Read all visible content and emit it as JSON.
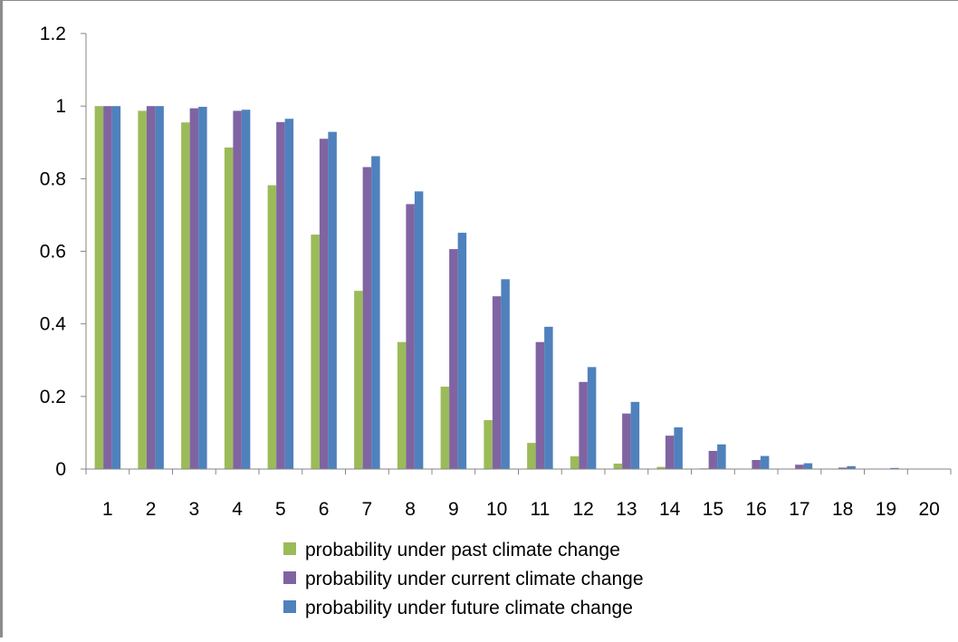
{
  "chart_data": {
    "type": "bar",
    "categories": [
      "1",
      "2",
      "3",
      "4",
      "5",
      "6",
      "7",
      "8",
      "9",
      "10",
      "11",
      "12",
      "13",
      "14",
      "15",
      "16",
      "17",
      "18",
      "19",
      "20"
    ],
    "series": [
      {
        "name": "probability under past climate change",
        "color": "#9bbb59",
        "values": [
          1.0,
          0.987,
          0.955,
          0.886,
          0.782,
          0.646,
          0.491,
          0.35,
          0.227,
          0.135,
          0.072,
          0.035,
          0.015,
          0.006,
          0.002,
          0.001,
          0.0,
          0.0,
          0.0,
          0.0
        ]
      },
      {
        "name": "probability under current climate change",
        "color": "#8064a2",
        "values": [
          1.0,
          1.0,
          0.994,
          0.987,
          0.956,
          0.91,
          0.832,
          0.73,
          0.606,
          0.476,
          0.35,
          0.24,
          0.153,
          0.092,
          0.05,
          0.025,
          0.012,
          0.004,
          0.001,
          0.0
        ]
      },
      {
        "name": "probability under future climate change",
        "color": "#4f81bd",
        "values": [
          1.0,
          1.0,
          0.998,
          0.99,
          0.965,
          0.929,
          0.862,
          0.765,
          0.651,
          0.523,
          0.392,
          0.281,
          0.185,
          0.115,
          0.068,
          0.036,
          0.016,
          0.008,
          0.003,
          0.0
        ]
      }
    ],
    "ylim": [
      0,
      1.2
    ],
    "yticks": [
      "0",
      "0.2",
      "0.4",
      "0.6",
      "0.8",
      "1",
      "1.2"
    ],
    "title": "",
    "xlabel": "",
    "ylabel": "",
    "grid": false,
    "legend_position": "bottom"
  }
}
